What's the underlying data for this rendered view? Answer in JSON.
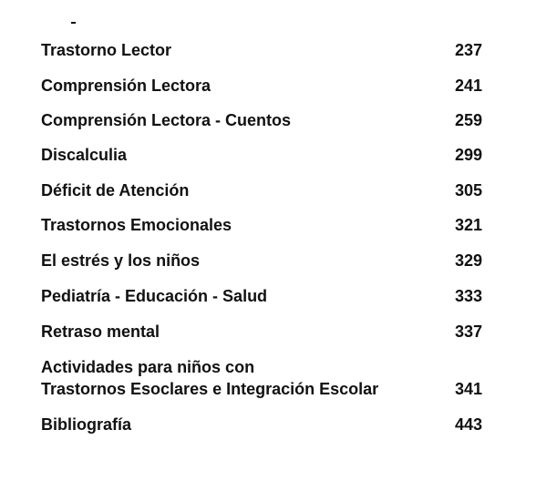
{
  "entries": [
    {
      "title": "Trastorno Lector",
      "page": "237"
    },
    {
      "title": "Comprensión Lectora",
      "page": "241"
    },
    {
      "title": "Comprensión Lectora - Cuentos",
      "page": "259"
    },
    {
      "title": "Discalculia",
      "page": "299"
    },
    {
      "title": "Déficit de Atención",
      "page": "305"
    },
    {
      "title": "Trastornos Emocionales",
      "page": "321"
    },
    {
      "title": "El estrés y los niños",
      "page": "329"
    },
    {
      "title": "Pediatría - Educación - Salud",
      "page": "333"
    },
    {
      "title": "Retraso mental",
      "page": "337"
    },
    {
      "title": "Actividades para niños con\nTrastornos Esoclares e Integración Escolar",
      "page": "341"
    },
    {
      "title": "Bibliografía",
      "page": "443"
    }
  ]
}
